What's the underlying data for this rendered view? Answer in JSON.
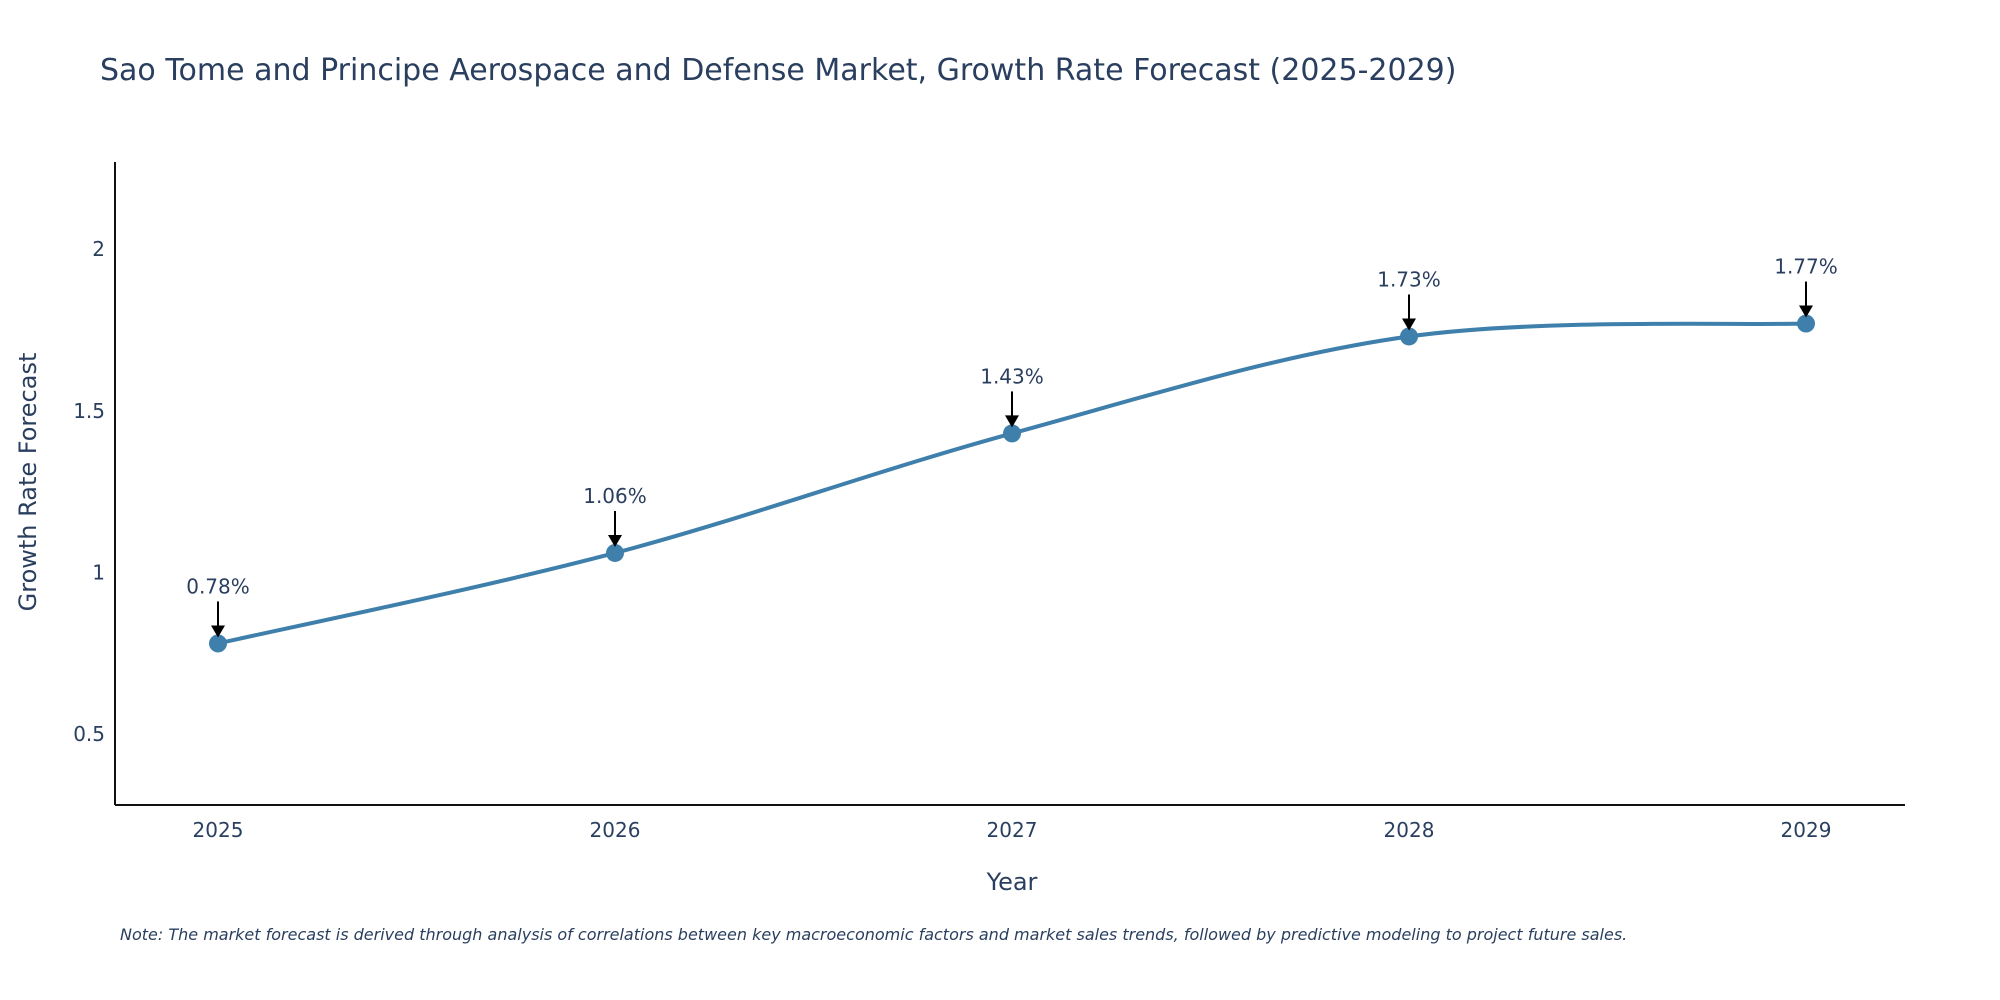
{
  "chart_data": {
    "type": "line",
    "title": "Sao Tome and Principe Aerospace and Defense Market, Growth Rate Forecast (2025-2029)",
    "xlabel": "Year",
    "ylabel": "Growth Rate Forecast",
    "categories": [
      "2025",
      "2026",
      "2027",
      "2028",
      "2029"
    ],
    "values": [
      0.78,
      1.06,
      1.43,
      1.73,
      1.77
    ],
    "data_labels": [
      "0.78%",
      "1.06%",
      "1.43%",
      "1.73%",
      "1.77%"
    ],
    "ylim": [
      0.28,
      2.27
    ],
    "yticks": [
      0.5,
      1,
      1.5,
      2
    ],
    "ytick_labels": [
      "0.5",
      "1",
      "1.5",
      "2"
    ],
    "line_color": "#3f7fab",
    "marker_color": "#3f7fab",
    "grid": false,
    "legend": "none",
    "note": "Note: The market forecast is derived through analysis of correlations between key macroeconomic factors and market sales trends, followed by predictive modeling to project future sales."
  }
}
